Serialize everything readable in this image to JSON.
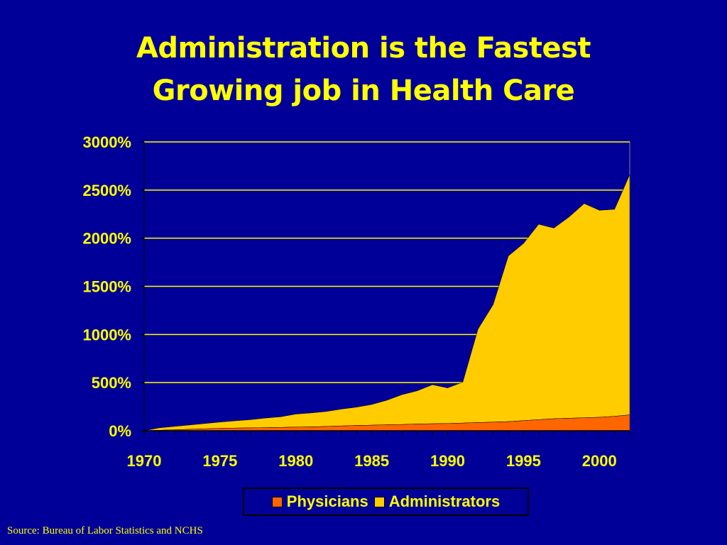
{
  "title": {
    "line1": "Administration is the Fastest",
    "line2": "Growing job in Health Care"
  },
  "source": "Source: Bureau of Labor Statistics and NCHS",
  "colors": {
    "background": "#000099",
    "text": "#ffff00",
    "physicians": "#ff6600",
    "administrators": "#ffcc00",
    "grid": "#ffff00"
  },
  "chart_data": {
    "type": "area",
    "stacked": true,
    "x": [
      1970,
      1971,
      1972,
      1973,
      1974,
      1975,
      1976,
      1977,
      1978,
      1979,
      1980,
      1981,
      1982,
      1983,
      1984,
      1985,
      1986,
      1987,
      1988,
      1989,
      1990,
      1991,
      1992,
      1993,
      1994,
      1995,
      1996,
      1997,
      1998,
      1999,
      2000,
      2001,
      2002
    ],
    "x_ticks": [
      "1970",
      "1975",
      "1980",
      "1985",
      "1990",
      "1995",
      "2000"
    ],
    "y_ticks": [
      "0%",
      "500%",
      "1000%",
      "1500%",
      "2000%",
      "2500%",
      "3000%"
    ],
    "ylim": [
      0,
      3000
    ],
    "xlim": [
      1970,
      2002
    ],
    "grid": true,
    "legend_position": "bottom",
    "series": [
      {
        "name": "Physicians",
        "values": [
          0,
          5,
          10,
          15,
          20,
          25,
          28,
          30,
          32,
          35,
          38,
          40,
          45,
          50,
          55,
          58,
          62,
          65,
          70,
          73,
          75,
          80,
          85,
          90,
          95,
          105,
          115,
          125,
          130,
          135,
          140,
          150,
          165
        ]
      },
      {
        "name": "Administrators",
        "values": [
          0,
          25,
          35,
          45,
          55,
          65,
          75,
          85,
          100,
          110,
          135,
          145,
          155,
          175,
          190,
          215,
          255,
          310,
          345,
          405,
          370,
          425,
          970,
          1220,
          1720,
          1840,
          2030,
          1980,
          2090,
          2225,
          2150,
          2150,
          2495
        ]
      }
    ],
    "xlabel": "",
    "ylabel": ""
  }
}
